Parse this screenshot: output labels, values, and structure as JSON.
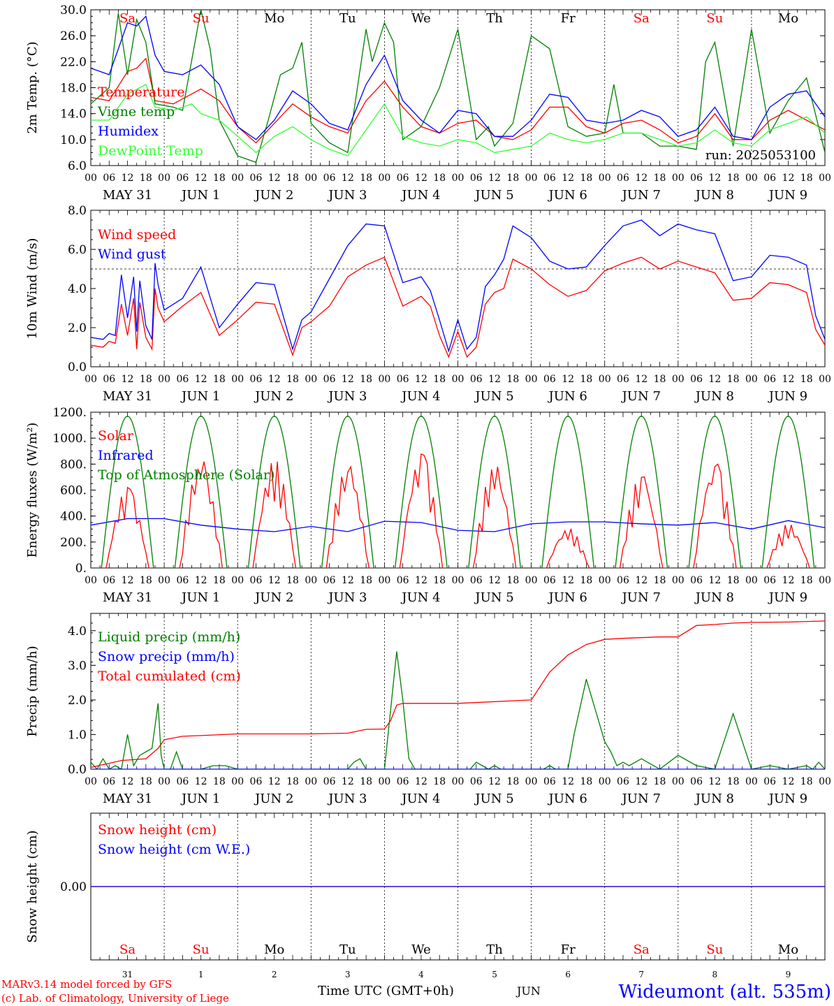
{
  "run_label": "run: 2025053100",
  "footer": {
    "model_line": "MARv3.14 model forced by GFS",
    "lab_line": "(c) Lab. of Climatology, University of Liege",
    "axis_title": "Time UTC (GMT+0h)",
    "month": "JUN",
    "station": "Wideumont (alt. 535m)"
  },
  "days": [
    {
      "abbr": "Sa",
      "weekend": true,
      "date": "MAY 31",
      "num": "31"
    },
    {
      "abbr": "Su",
      "weekend": true,
      "date": "JUN  1",
      "num": "1"
    },
    {
      "abbr": "Mo",
      "weekend": false,
      "date": "JUN  2",
      "num": "2"
    },
    {
      "abbr": "Tu",
      "weekend": false,
      "date": "JUN  3",
      "num": "3"
    },
    {
      "abbr": "We",
      "weekend": false,
      "date": "JUN  4",
      "num": "4"
    },
    {
      "abbr": "Th",
      "weekend": false,
      "date": "JUN  5",
      "num": "5"
    },
    {
      "abbr": "Fr",
      "weekend": false,
      "date": "JUN  6",
      "num": "6"
    },
    {
      "abbr": "Sa",
      "weekend": true,
      "date": "JUN  7",
      "num": "7"
    },
    {
      "abbr": "Su",
      "weekend": true,
      "date": "JUN  8",
      "num": "8"
    },
    {
      "abbr": "Mo",
      "weekend": false,
      "date": "JUN  9",
      "num": "9"
    }
  ],
  "hour_labels": [
    "00",
    "06",
    "12",
    "18"
  ],
  "colors": {
    "red": "#ff0000",
    "green": "#008000",
    "blue": "#0000ff",
    "lightgreen": "#33ff33",
    "axis": "#000000"
  },
  "chart_data": [
    {
      "type": "line",
      "ylabel": "2m Temp. (°C)",
      "ylim": [
        6,
        30
      ],
      "yticks": [
        "6.0",
        "10.0",
        "14.0",
        "18.0",
        "22.0",
        "26.0",
        "30.0"
      ],
      "x_unit": "hours since 2025-05-31 00 UTC",
      "series": [
        {
          "name": "Temperature",
          "color": "#ff0000",
          "x": [
            0,
            6,
            12,
            15,
            18,
            21,
            27,
            36,
            42,
            48,
            54,
            60,
            66,
            72,
            78,
            84,
            90,
            96,
            102,
            108,
            114,
            120,
            126,
            132,
            138,
            144,
            150,
            156,
            162,
            168,
            174,
            180,
            186,
            192,
            198,
            204,
            210,
            216,
            222,
            228,
            234,
            240
          ],
          "y": [
            16.5,
            16.0,
            20.5,
            21.0,
            22.5,
            16.0,
            15.5,
            17.8,
            16.0,
            12.0,
            9.5,
            12.5,
            15.5,
            13.5,
            12.0,
            11.0,
            16.0,
            19.0,
            15.0,
            12.0,
            11.0,
            12.5,
            13.0,
            10.5,
            10.0,
            11.5,
            15.0,
            15.0,
            12.0,
            11.0,
            12.5,
            13.0,
            11.5,
            9.5,
            10.5,
            14.0,
            10.0,
            10.0,
            13.0,
            14.5,
            13.0,
            11.5
          ]
        },
        {
          "name": "Vigne temp",
          "color": "#008000",
          "x": [
            0,
            6,
            9,
            12,
            15,
            18,
            21,
            27,
            30,
            36,
            39,
            42,
            48,
            54,
            58,
            62,
            66,
            69,
            72,
            78,
            84,
            90,
            92,
            96,
            99,
            102,
            108,
            114,
            120,
            126,
            130,
            132,
            138,
            144,
            150,
            153,
            156,
            162,
            168,
            171,
            174,
            180,
            186,
            192,
            198,
            201,
            204,
            210,
            216,
            222,
            228,
            234,
            240
          ],
          "y": [
            15.5,
            18.0,
            29.5,
            20.0,
            28.5,
            25.0,
            15.5,
            15.0,
            14.5,
            30.0,
            24.0,
            13.0,
            7.5,
            6.5,
            13.0,
            20.0,
            21.0,
            25.0,
            12.5,
            9.5,
            8.0,
            27.0,
            22.0,
            28.0,
            25.0,
            10.0,
            12.0,
            18.0,
            27.0,
            10.0,
            12.0,
            9.0,
            12.5,
            26.0,
            24.0,
            18.0,
            12.0,
            10.5,
            11.0,
            18.5,
            11.0,
            11.0,
            9.0,
            9.0,
            8.5,
            22.0,
            25.0,
            9.0,
            27.0,
            11.0,
            16.0,
            19.5,
            8.0
          ]
        },
        {
          "name": "Humidex",
          "color": "#0000ff",
          "x": [
            0,
            6,
            12,
            15,
            18,
            21,
            24,
            30,
            36,
            42,
            48,
            54,
            60,
            66,
            72,
            78,
            84,
            90,
            96,
            102,
            108,
            114,
            120,
            126,
            132,
            138,
            144,
            150,
            156,
            162,
            168,
            174,
            180,
            186,
            192,
            198,
            204,
            210,
            216,
            222,
            228,
            234,
            240
          ],
          "y": [
            21.0,
            20.0,
            28.0,
            27.5,
            29.0,
            23.0,
            20.5,
            20.0,
            21.5,
            18.5,
            12.0,
            10.0,
            13.0,
            17.5,
            15.5,
            12.5,
            11.5,
            18.5,
            23.0,
            16.0,
            13.0,
            11.0,
            14.5,
            14.0,
            10.5,
            10.5,
            13.0,
            17.0,
            16.5,
            13.0,
            12.5,
            13.0,
            14.5,
            13.5,
            10.5,
            11.5,
            15.0,
            10.5,
            10.0,
            15.0,
            17.0,
            17.5,
            13.5
          ]
        },
        {
          "name": "DewPoint Temp",
          "color": "#33ff33",
          "x": [
            0,
            6,
            12,
            18,
            21,
            27,
            33,
            36,
            42,
            48,
            54,
            60,
            66,
            72,
            78,
            84,
            90,
            96,
            102,
            108,
            114,
            120,
            126,
            132,
            138,
            144,
            150,
            156,
            162,
            168,
            174,
            180,
            186,
            192,
            198,
            204,
            210,
            216,
            222,
            228,
            234,
            240
          ],
          "y": [
            13.0,
            13.0,
            17.0,
            18.5,
            15.0,
            14.5,
            15.5,
            14.0,
            13.0,
            10.5,
            8.0,
            10.5,
            12.0,
            10.0,
            8.5,
            7.5,
            11.5,
            15.5,
            10.5,
            9.5,
            9.0,
            10.0,
            9.5,
            8.0,
            8.5,
            9.0,
            11.0,
            10.0,
            9.5,
            10.0,
            11.0,
            11.0,
            10.0,
            9.0,
            9.5,
            11.5,
            9.5,
            9.0,
            11.5,
            12.5,
            13.5,
            11.0
          ]
        }
      ]
    },
    {
      "type": "line",
      "ylabel": "10m Wind (m/s)",
      "ylim": [
        0,
        8
      ],
      "yticks": [
        "0.0",
        "2.0",
        "4.0",
        "6.0",
        "8.0"
      ],
      "reference_line": 5.0,
      "series": [
        {
          "name": "Wind speed",
          "color": "#ff0000",
          "x": [
            0,
            4,
            6,
            8,
            10,
            12,
            14,
            15,
            16,
            18,
            20,
            21,
            22,
            24,
            30,
            36,
            42,
            48,
            54,
            60,
            66,
            69,
            72,
            78,
            84,
            90,
            96,
            102,
            108,
            111,
            114,
            117,
            120,
            123,
            126,
            129,
            132,
            135,
            138,
            144,
            150,
            156,
            162,
            168,
            174,
            180,
            186,
            192,
            198,
            204,
            210,
            216,
            222,
            228,
            234,
            237,
            240
          ],
          "y": [
            1.1,
            1.0,
            1.3,
            1.2,
            3.2,
            1.6,
            3.5,
            0.9,
            3.3,
            1.5,
            0.9,
            4.0,
            3.0,
            2.3,
            3.1,
            3.8,
            1.6,
            2.4,
            3.3,
            3.2,
            0.6,
            2.0,
            2.3,
            3.1,
            4.6,
            5.2,
            5.6,
            3.1,
            3.6,
            3.1,
            1.6,
            0.5,
            1.8,
            0.5,
            1.0,
            3.2,
            3.8,
            4.0,
            5.5,
            5.0,
            4.2,
            3.6,
            3.9,
            4.9,
            5.3,
            5.6,
            5.0,
            5.4,
            5.1,
            4.8,
            3.4,
            3.5,
            4.3,
            4.2,
            3.8,
            1.9,
            1.1
          ]
        },
        {
          "name": "Wind gust",
          "color": "#0000ff",
          "x": [
            0,
            4,
            6,
            8,
            10,
            12,
            14,
            15,
            16,
            18,
            20,
            21,
            22,
            24,
            30,
            36,
            42,
            48,
            54,
            60,
            66,
            69,
            72,
            78,
            84,
            90,
            96,
            102,
            108,
            111,
            114,
            117,
            120,
            123,
            126,
            129,
            132,
            135,
            138,
            144,
            150,
            156,
            162,
            168,
            174,
            180,
            186,
            192,
            198,
            204,
            210,
            216,
            222,
            228,
            234,
            237,
            240
          ],
          "y": [
            1.5,
            1.4,
            1.7,
            1.6,
            4.7,
            2.5,
            4.6,
            1.8,
            4.4,
            2.1,
            1.4,
            5.3,
            4.2,
            2.9,
            3.5,
            5.1,
            2.0,
            3.2,
            4.3,
            4.2,
            0.9,
            2.4,
            2.8,
            4.5,
            6.2,
            7.3,
            7.2,
            4.3,
            4.6,
            3.9,
            2.4,
            0.8,
            2.4,
            0.9,
            1.5,
            4.1,
            4.7,
            5.5,
            7.2,
            6.6,
            5.4,
            5.0,
            5.1,
            6.2,
            7.2,
            7.5,
            6.7,
            7.3,
            7.0,
            6.8,
            4.4,
            4.6,
            5.7,
            5.6,
            5.2,
            2.6,
            1.4
          ]
        }
      ]
    },
    {
      "type": "line",
      "ylabel": "Energy fluxes (W/m²)",
      "ylim": [
        0,
        1200
      ],
      "yticks": [
        "0.",
        "200.",
        "400.",
        "600.",
        "800.",
        "1000.",
        "1200."
      ],
      "series": [
        {
          "name": "Solar",
          "color": "#ff0000",
          "peaks": [
            620,
            840,
            840,
            800,
            890,
            800,
            310,
            720,
            820,
            340
          ],
          "jagged_pattern": "noon-peaked with dips"
        },
        {
          "name": "Infrared",
          "color": "#0000ff",
          "x": [
            0,
            12,
            24,
            36,
            48,
            60,
            72,
            84,
            96,
            108,
            120,
            132,
            144,
            156,
            168,
            180,
            192,
            204,
            216,
            228,
            240
          ],
          "y": [
            330,
            380,
            380,
            330,
            300,
            280,
            320,
            280,
            360,
            350,
            290,
            280,
            340,
            355,
            355,
            340,
            330,
            350,
            300,
            365,
            310
          ]
        },
        {
          "name": "Top of Atmosphere (Solar)",
          "color": "#008000",
          "peak": 1170,
          "sunrise_hour": 3.5,
          "sunset_hour": 20.5
        }
      ]
    },
    {
      "type": "line",
      "ylabel": "Precip (mm/h)",
      "ylim": [
        0,
        4.5
      ],
      "yticks": [
        "0.0",
        "1.0",
        "2.0",
        "3.0",
        "4.0"
      ],
      "series": [
        {
          "name": "Liquid precip (mm/h)",
          "color": "#008000",
          "x": [
            0,
            2,
            4,
            6,
            8,
            10,
            12,
            14,
            16,
            18,
            20,
            22,
            23,
            24,
            26,
            28,
            30,
            34,
            36,
            40,
            44,
            48,
            60,
            72,
            84,
            86,
            88,
            90,
            92,
            96,
            100,
            102,
            104,
            106,
            108,
            112,
            116,
            120,
            124,
            126,
            128,
            130,
            132,
            134,
            136,
            140,
            144,
            148,
            150,
            152,
            154,
            156,
            158,
            162,
            168,
            170,
            172,
            174,
            176,
            180,
            186,
            192,
            198,
            204,
            210,
            216,
            222,
            228,
            234,
            236,
            238,
            240
          ],
          "y": [
            0.2,
            0.0,
            0.3,
            0.0,
            0.1,
            0.0,
            1.0,
            0.1,
            0.4,
            0.5,
            0.6,
            1.9,
            0.4,
            0.0,
            0.0,
            0.5,
            0.0,
            0.0,
            0.0,
            0.1,
            0.1,
            0.0,
            0.0,
            0.0,
            0.0,
            0.2,
            0.3,
            0.0,
            0.0,
            0.0,
            3.4,
            2.0,
            0.3,
            0.0,
            0.0,
            0.0,
            0.0,
            0.0,
            0.0,
            0.2,
            0.1,
            0.0,
            0.1,
            0.0,
            0.0,
            0.0,
            0.0,
            0.0,
            0.1,
            0.0,
            0.0,
            0.0,
            1.0,
            2.6,
            0.8,
            0.5,
            0.1,
            0.2,
            0.1,
            0.3,
            0.0,
            0.4,
            0.1,
            0.0,
            1.6,
            0.0,
            0.1,
            0.0,
            0.1,
            0.0,
            0.2,
            0.0
          ]
        },
        {
          "name": "Snow precip (mm/h)",
          "color": "#0000ff",
          "x": [
            0,
            240
          ],
          "y": [
            0,
            0
          ]
        },
        {
          "name": "Total cumulated (cm)",
          "color": "#ff0000",
          "x": [
            0,
            10,
            18,
            22,
            24,
            30,
            36,
            48,
            60,
            72,
            84,
            90,
            96,
            98,
            100,
            102,
            108,
            120,
            144,
            150,
            156,
            162,
            168,
            174,
            180,
            186,
            192,
            198,
            204,
            210,
            216,
            228,
            240
          ],
          "y": [
            0.05,
            0.25,
            0.3,
            0.6,
            0.85,
            0.95,
            0.97,
            1.02,
            1.02,
            1.02,
            1.04,
            1.15,
            1.16,
            1.4,
            1.85,
            1.9,
            1.9,
            1.9,
            2.0,
            2.8,
            3.3,
            3.6,
            3.75,
            3.78,
            3.8,
            3.82,
            3.82,
            4.15,
            4.18,
            4.22,
            4.24,
            4.25,
            4.28
          ]
        }
      ]
    },
    {
      "type": "line",
      "ylabel": "Snow height (cm)",
      "yticks": [
        "0.00"
      ],
      "series": [
        {
          "name": "Snow height (cm)",
          "color": "#ff0000",
          "x": [
            0,
            240
          ],
          "y": [
            0,
            0
          ]
        },
        {
          "name": "Snow height (cm W.E.)",
          "color": "#0000ff",
          "x": [
            0,
            240
          ],
          "y": [
            0,
            0
          ]
        }
      ]
    }
  ]
}
